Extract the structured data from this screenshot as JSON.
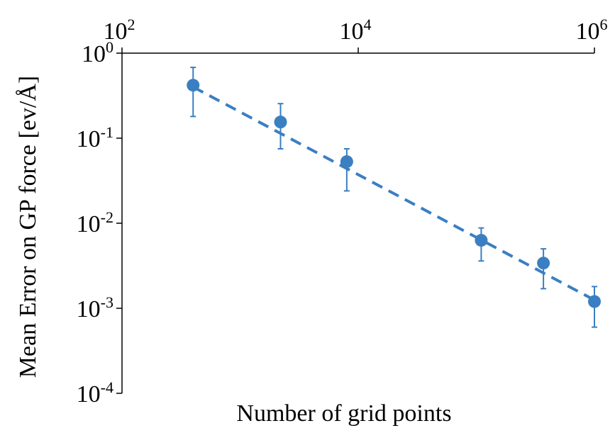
{
  "chart_data": {
    "type": "scatter",
    "title": "",
    "xlabel": "Number of grid points",
    "ylabel": "Mean Error on GP force [ev/Å]",
    "x_scale": "log",
    "y_scale": "log",
    "xlim": [
      100,
      1000000
    ],
    "ylim": [
      0.0001,
      1
    ],
    "x_axis_position": "top",
    "grid": false,
    "legend": "none",
    "x_ticks": [
      {
        "base": "10",
        "exp": "2",
        "value": 100
      },
      {
        "base": "10",
        "exp": "4",
        "value": 10000
      },
      {
        "base": "10",
        "exp": "6",
        "value": 1000000
      }
    ],
    "y_ticks": [
      {
        "base": "10",
        "exp": "0",
        "value": 1
      },
      {
        "base": "10",
        "exp": "-1",
        "value": 0.1
      },
      {
        "base": "10",
        "exp": "-2",
        "value": 0.01
      },
      {
        "base": "10",
        "exp": "-3",
        "value": 0.001
      },
      {
        "base": "10",
        "exp": "-4",
        "value": 0.0001
      }
    ],
    "series": [
      {
        "marker_color": "#3a7fc1",
        "points": [
          {
            "x": 400,
            "y": 0.42,
            "err_low": 0.18,
            "err_high": 0.68
          },
          {
            "x": 2200,
            "y": 0.155,
            "err_low": 0.075,
            "err_high": 0.255
          },
          {
            "x": 8000,
            "y": 0.053,
            "err_low": 0.024,
            "err_high": 0.075
          },
          {
            "x": 110000,
            "y": 0.0063,
            "err_low": 0.0036,
            "err_high": 0.0088
          },
          {
            "x": 370000,
            "y": 0.0034,
            "err_low": 0.0017,
            "err_high": 0.005
          },
          {
            "x": 1000000,
            "y": 0.0012,
            "err_low": 0.0006,
            "err_high": 0.0018
          }
        ]
      }
    ],
    "fit_line": {
      "color": "#3a7fc1",
      "style": "dashed",
      "x": [
        400,
        1000000
      ],
      "y": [
        0.4,
        0.00125
      ]
    }
  }
}
